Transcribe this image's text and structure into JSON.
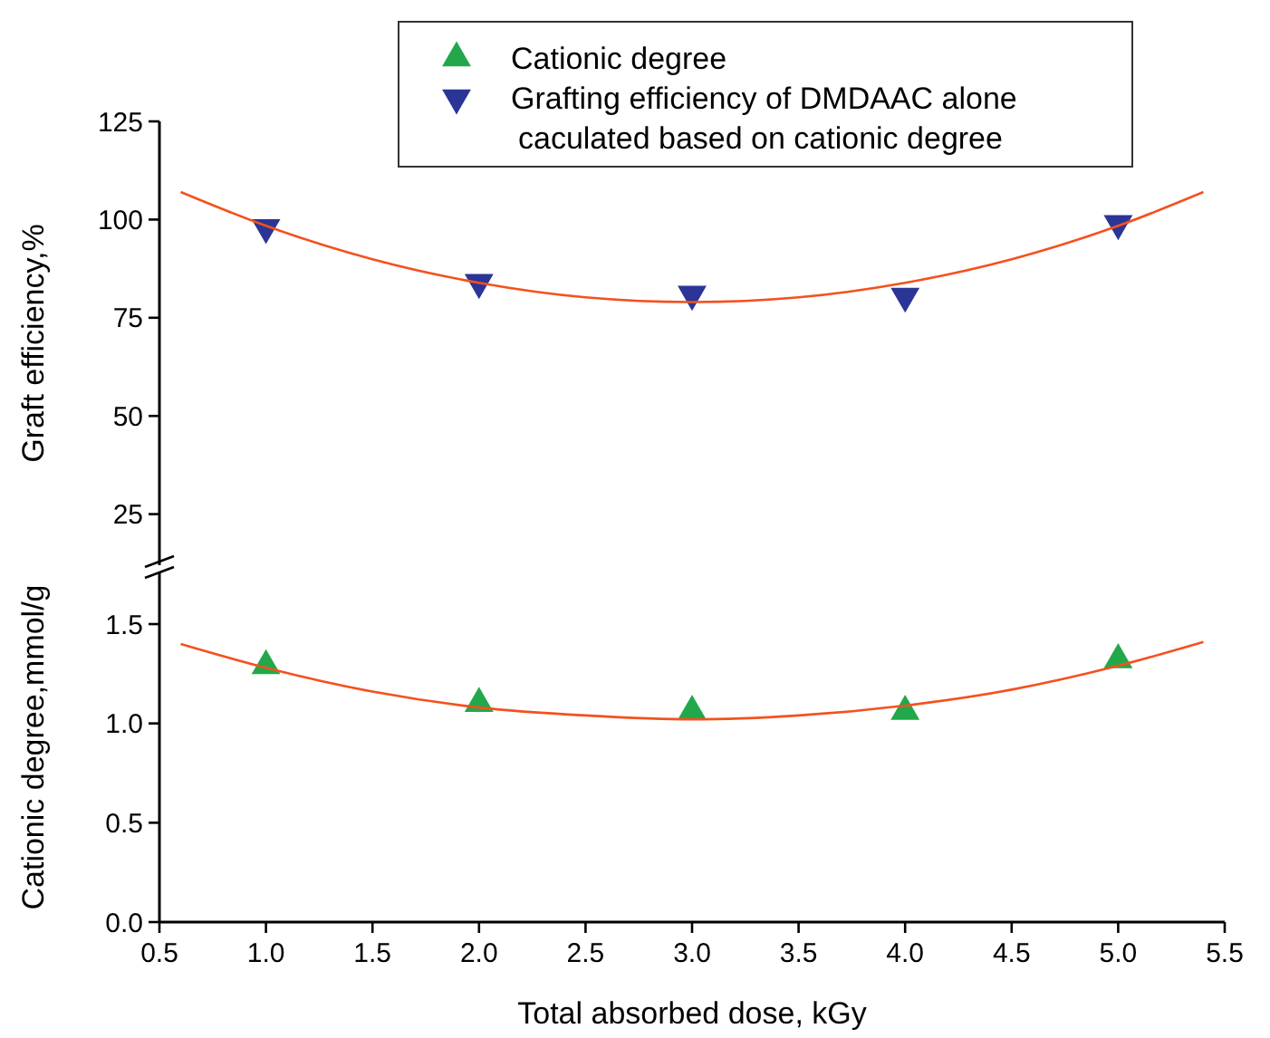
{
  "chart_data": [
    {
      "type": "scatter",
      "ylabel": "Graft efficiency,%",
      "xlim": [
        0.5,
        5.5
      ],
      "ylim": [
        12,
        125
      ],
      "yticks": [
        25,
        50,
        75,
        100,
        125
      ],
      "tick_labels": "y",
      "legend": "top",
      "series": [
        {
          "name": "Grafting efficiency of DMDAAC alone caculated based on cationic degree",
          "color": "#2b3595",
          "marker": "triangle-down",
          "x": [
            1,
            2,
            3,
            4,
            5
          ],
          "values": [
            98,
            84,
            81,
            80.5,
            99
          ]
        },
        {
          "type": "line",
          "color": "#f4511e",
          "x": [
            0.6,
            1,
            1.5,
            2,
            2.5,
            3,
            3.5,
            4,
            4.5,
            5,
            5.4
          ],
          "values": [
            107,
            98.4,
            89.9,
            83.9,
            80.2,
            79,
            80.2,
            83.9,
            89.9,
            98.4,
            107
          ]
        }
      ]
    },
    {
      "type": "scatter",
      "xlabel": "Total absorbed dose, kGy",
      "ylabel": "Cationic degree,mmol/g",
      "xlim": [
        0.5,
        5.5
      ],
      "xticks": [
        {
          "value": 0.5,
          "label": "0.5"
        },
        {
          "value": 1,
          "label": "1.0"
        },
        {
          "value": 1.5,
          "label": "1.5"
        },
        {
          "value": 2,
          "label": "2.0"
        },
        {
          "value": 2.5,
          "label": "2.5"
        },
        {
          "value": 3,
          "label": "3.0"
        },
        {
          "value": 3.5,
          "label": "3.5"
        },
        {
          "value": 4,
          "label": "4.0"
        },
        {
          "value": 4.5,
          "label": "4.5"
        },
        {
          "value": 5,
          "label": "5.0"
        },
        {
          "value": 5.5,
          "label": "5.5"
        }
      ],
      "ylim": [
        0,
        1.76
      ],
      "yticks": [
        {
          "value": 0,
          "label": "0.0"
        },
        {
          "value": 0.5,
          "label": "0.5"
        },
        {
          "value": 1,
          "label": "1.0"
        },
        {
          "value": 1.5,
          "label": "1.5"
        }
      ],
      "legend": "top",
      "series": [
        {
          "name": "Cationic degree",
          "color": "#22a84a",
          "marker": "triangle",
          "x": [
            1,
            2,
            3,
            4,
            5
          ],
          "values": [
            1.29,
            1.1,
            1.06,
            1.06,
            1.32
          ]
        },
        {
          "type": "line",
          "color": "#f4511e",
          "x": [
            0.6,
            1,
            1.5,
            2,
            2.5,
            3,
            3.5,
            4,
            4.5,
            5,
            5.4
          ],
          "values": [
            1.4,
            1.28,
            1.16,
            1.08,
            1.04,
            1.02,
            1.04,
            1.09,
            1.17,
            1.29,
            1.41
          ]
        }
      ]
    }
  ]
}
